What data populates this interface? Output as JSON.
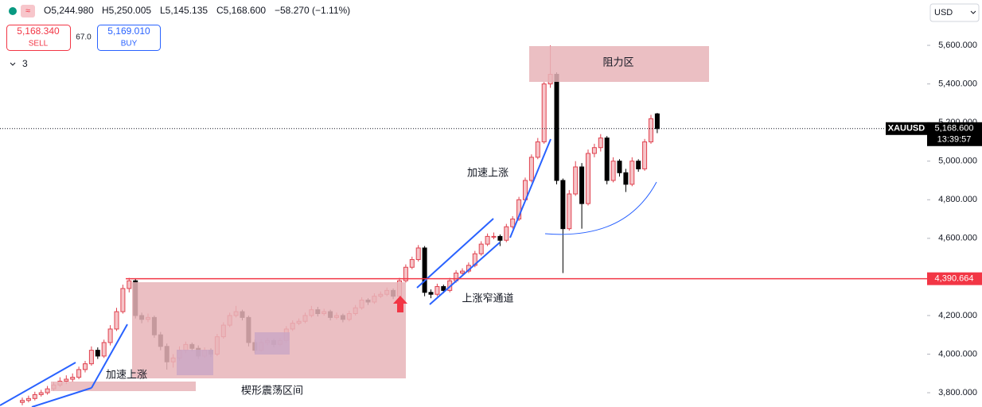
{
  "chart_data": {
    "type": "candlestick",
    "header": [
      "O5,244.980",
      "H5,250.005",
      "L5,145.135",
      "C5,168.600",
      "−58.270 (−1.11%)"
    ],
    "sell": {
      "price": "5,168.340",
      "label": "SELL"
    },
    "spread": "67.0",
    "buy": {
      "price": "5,169.010",
      "label": "BUY"
    },
    "indicators_count": "3",
    "currency": "USD",
    "symbol": "XAUUSD",
    "countdown": "13:39:57",
    "last_price": {
      "value": 5168.6,
      "label": "5,168.600"
    },
    "level": {
      "value": 4390.664,
      "label": "4,390.664"
    },
    "annotations": [
      "阻力区",
      "加速上涨",
      "上涨窄通道",
      "加速上涨",
      "楔形震荡区间"
    ],
    "up_color": "#e0424f",
    "up_fill": "#f6c5c9",
    "down_color": "#000000",
    "ylim": [
      3726,
      5835
    ],
    "yticks": [
      {
        "value": 3800,
        "label": "3,800.000"
      },
      {
        "value": 4000,
        "label": "4,000.000"
      },
      {
        "value": 4200,
        "label": "4,200.000"
      },
      {
        "value": 4400,
        "label": "4,400.000"
      },
      {
        "value": 4600,
        "label": "4,600.000"
      },
      {
        "value": 4800,
        "label": "4,800.000"
      },
      {
        "value": 5000,
        "label": "5,000.000"
      },
      {
        "value": 5200,
        "label": "5,200.000"
      },
      {
        "value": 5400,
        "label": "5,400.000"
      },
      {
        "value": 5600,
        "label": "5,600.000"
      }
    ],
    "ohlc": [
      [
        3750,
        3775,
        3735,
        3760
      ],
      [
        3760,
        3785,
        3750,
        3770
      ],
      [
        3770,
        3805,
        3760,
        3790
      ],
      [
        3790,
        3815,
        3780,
        3800
      ],
      [
        3800,
        3835,
        3790,
        3820
      ],
      [
        3820,
        3855,
        3810,
        3840
      ],
      [
        3840,
        3880,
        3830,
        3860
      ],
      [
        3860,
        3890,
        3845,
        3870
      ],
      [
        3870,
        3900,
        3855,
        3880
      ],
      [
        3880,
        3935,
        3870,
        3920
      ],
      [
        3920,
        3965,
        3905,
        3950
      ],
      [
        3950,
        4040,
        3940,
        4020
      ],
      [
        4020,
        4035,
        3975,
        3990
      ],
      [
        3990,
        4075,
        3980,
        4060
      ],
      [
        4060,
        4150,
        4045,
        4130
      ],
      [
        4130,
        4240,
        4120,
        4220
      ],
      [
        4220,
        4360,
        4210,
        4340
      ],
      [
        4340,
        4395,
        4320,
        4380
      ],
      [
        4380,
        4390,
        4185,
        4200
      ],
      [
        4200,
        4215,
        4160,
        4180
      ],
      [
        4180,
        4210,
        4165,
        4190
      ],
      [
        4190,
        4200,
        4085,
        4100
      ],
      [
        4100,
        4115,
        4020,
        4040
      ],
      [
        4040,
        4055,
        3920,
        3960
      ],
      [
        3960,
        4000,
        3930,
        3980
      ],
      [
        3980,
        4040,
        3965,
        4020
      ],
      [
        4020,
        4065,
        4005,
        4050
      ],
      [
        4050,
        4060,
        4015,
        4030
      ],
      [
        4030,
        4045,
        3975,
        3990
      ],
      [
        3990,
        4035,
        3980,
        4020
      ],
      [
        4020,
        4030,
        3985,
        4000
      ],
      [
        4000,
        4105,
        3990,
        4090
      ],
      [
        4090,
        4165,
        4080,
        4150
      ],
      [
        4150,
        4215,
        4140,
        4200
      ],
      [
        4200,
        4250,
        4190,
        4220
      ],
      [
        4220,
        4230,
        4175,
        4190
      ],
      [
        4190,
        4200,
        4040,
        4060
      ],
      [
        4060,
        4075,
        4005,
        4020
      ],
      [
        4020,
        4075,
        4010,
        4060
      ],
      [
        4060,
        4085,
        4045,
        4070
      ],
      [
        4070,
        4080,
        4035,
        4050
      ],
      [
        4050,
        4085,
        4040,
        4070
      ],
      [
        4070,
        4145,
        4060,
        4130
      ],
      [
        4130,
        4175,
        4120,
        4160
      ],
      [
        4160,
        4185,
        4150,
        4170
      ],
      [
        4170,
        4215,
        4160,
        4200
      ],
      [
        4200,
        4250,
        4190,
        4230
      ],
      [
        4230,
        4245,
        4195,
        4210
      ],
      [
        4210,
        4235,
        4200,
        4220
      ],
      [
        4220,
        4230,
        4175,
        4190
      ],
      [
        4190,
        4215,
        4180,
        4200
      ],
      [
        4200,
        4210,
        4165,
        4180
      ],
      [
        4180,
        4225,
        4170,
        4210
      ],
      [
        4210,
        4255,
        4200,
        4240
      ],
      [
        4240,
        4295,
        4230,
        4280
      ],
      [
        4280,
        4290,
        4255,
        4270
      ],
      [
        4270,
        4315,
        4260,
        4300
      ],
      [
        4300,
        4325,
        4290,
        4310
      ],
      [
        4310,
        4345,
        4300,
        4330
      ],
      [
        4330,
        4340,
        4285,
        4300
      ],
      [
        4300,
        4395,
        4290,
        4380
      ],
      [
        4380,
        4465,
        4370,
        4450
      ],
      [
        4450,
        4505,
        4440,
        4490
      ],
      [
        4490,
        4565,
        4480,
        4550
      ],
      [
        4550,
        4560,
        4300,
        4320
      ],
      [
        4320,
        4335,
        4290,
        4310
      ],
      [
        4310,
        4365,
        4300,
        4350
      ],
      [
        4350,
        4360,
        4315,
        4330
      ],
      [
        4330,
        4395,
        4320,
        4380
      ],
      [
        4380,
        4435,
        4370,
        4420
      ],
      [
        4420,
        4445,
        4410,
        4430
      ],
      [
        4430,
        4475,
        4420,
        4460
      ],
      [
        4460,
        4535,
        4450,
        4520
      ],
      [
        4520,
        4585,
        4510,
        4570
      ],
      [
        4570,
        4625,
        4560,
        4610
      ],
      [
        4610,
        4630,
        4595,
        4610
      ],
      [
        4610,
        4620,
        4560,
        4590
      ],
      [
        4590,
        4675,
        4580,
        4660
      ],
      [
        4660,
        4715,
        4650,
        4700
      ],
      [
        4700,
        4815,
        4690,
        4800
      ],
      [
        4800,
        4915,
        4790,
        4900
      ],
      [
        4900,
        5035,
        4890,
        5020
      ],
      [
        5020,
        5120,
        5010,
        5100
      ],
      [
        5100,
        5410,
        5090,
        5400
      ],
      [
        5400,
        5600,
        5380,
        5450
      ],
      [
        5450,
        5460,
        4880,
        4900
      ],
      [
        4900,
        4910,
        4420,
        4650
      ],
      [
        4650,
        4850,
        4640,
        4830
      ],
      [
        4830,
        5000,
        4820,
        4970
      ],
      [
        4970,
        4990,
        4650,
        4780
      ],
      [
        4780,
        5060,
        4770,
        5040
      ],
      [
        5040,
        5090,
        5020,
        5070
      ],
      [
        5070,
        5140,
        5050,
        5120
      ],
      [
        5120,
        5130,
        4880,
        4900
      ],
      [
        4900,
        5020,
        4890,
        5000
      ],
      [
        5000,
        5010,
        4920,
        4940
      ],
      [
        4940,
        4960,
        4840,
        4880
      ],
      [
        4880,
        5020,
        4870,
        5000
      ],
      [
        5000,
        5010,
        4945,
        4960
      ],
      [
        4960,
        5115,
        4950,
        5100
      ],
      [
        5100,
        5240,
        5090,
        5220
      ],
      [
        5244.98,
        5250.005,
        5145.135,
        5168.6
      ]
    ]
  }
}
